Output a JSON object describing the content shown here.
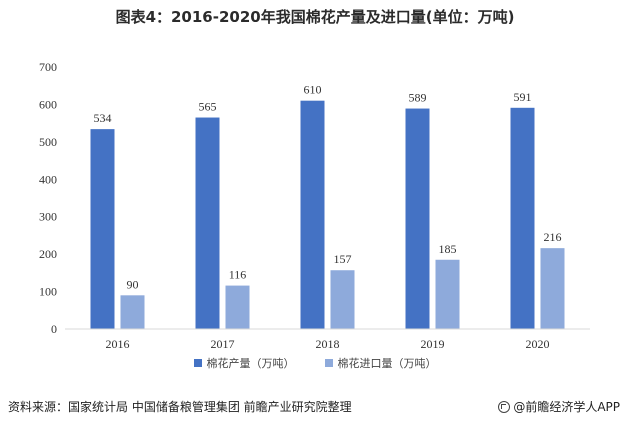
{
  "title": "图表4：2016-2020年我国棉花产量及进口量(单位：万吨)",
  "source": "资料来源：国家统计局 中国储备粮管理集团 前瞻产业研究院整理",
  "brand": "@前瞻经济学人APP",
  "colors": {
    "production": "#4472c4",
    "imports": "#8eaadb",
    "axis": "#d9d9d9"
  },
  "chart_data": {
    "type": "bar",
    "categories": [
      "2016",
      "2017",
      "2018",
      "2019",
      "2020"
    ],
    "series": [
      {
        "name": "棉花产量（万吨）",
        "values": [
          534,
          565,
          610,
          589,
          591
        ]
      },
      {
        "name": "棉花进口量（万吨）",
        "values": [
          90,
          116,
          157,
          185,
          216
        ]
      }
    ],
    "yticks": [
      "0",
      "100",
      "200",
      "300",
      "400",
      "500",
      "600",
      "700"
    ],
    "ylim": [
      0,
      700
    ],
    "grid": false,
    "legend": "bottom"
  }
}
